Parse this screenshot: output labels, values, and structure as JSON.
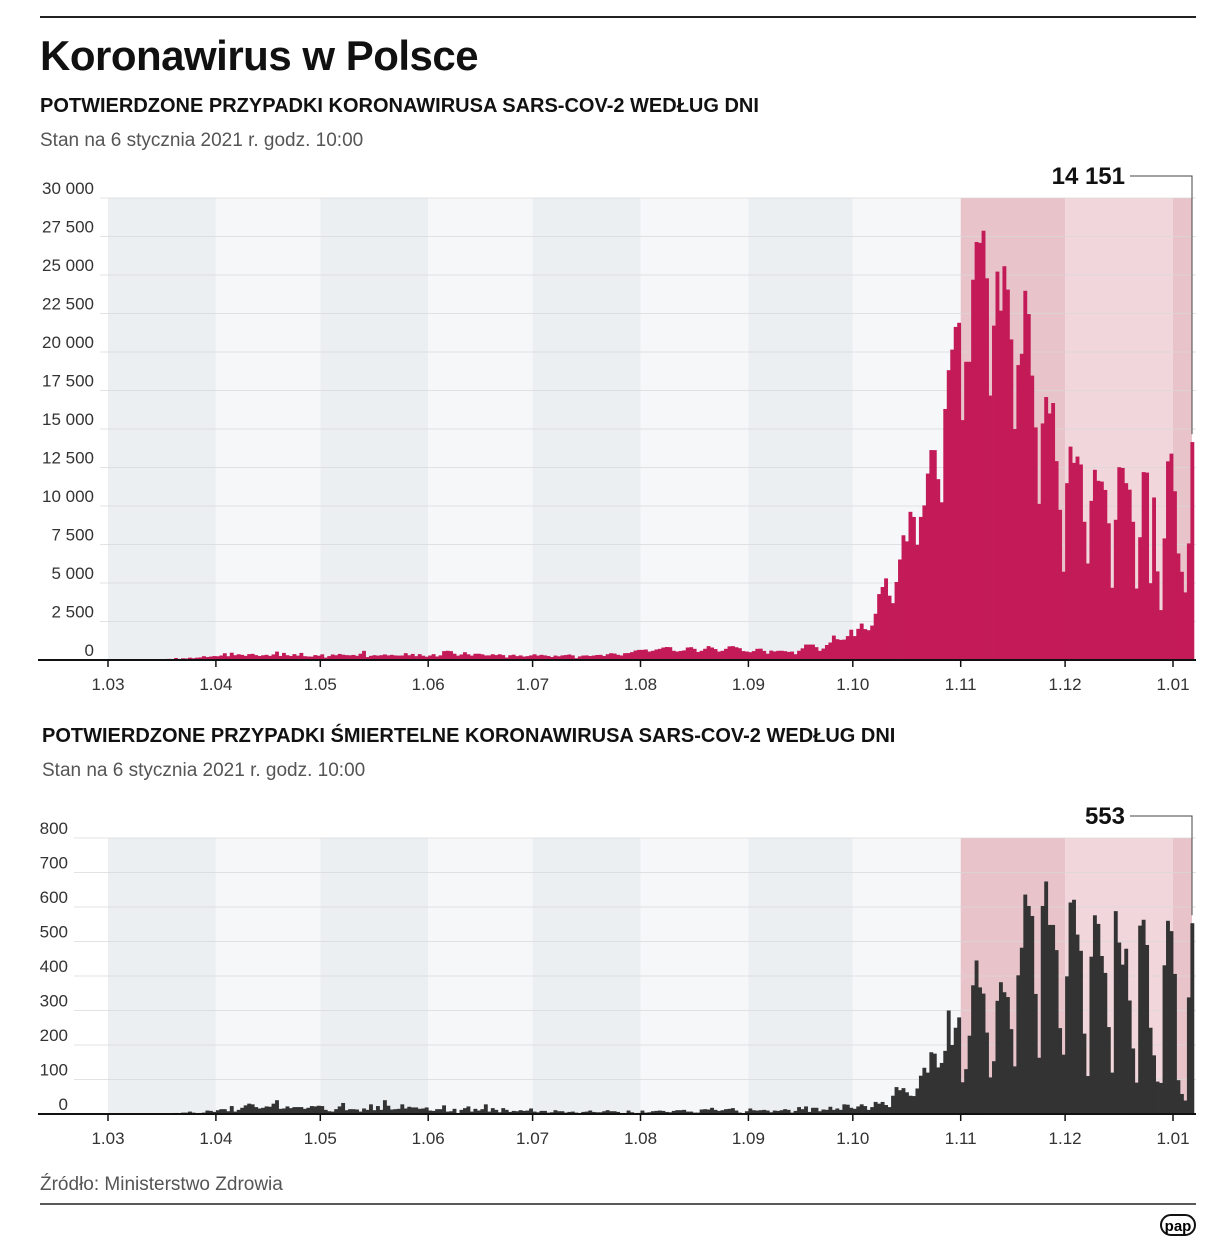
{
  "title": "Koronawirus w Polsce",
  "source": "Źródło: Ministerstwo Zdrowia",
  "logo": "pap",
  "colors": {
    "cases": "#c31b57",
    "deaths": "#333333",
    "band_a": "#eceff2",
    "band_b": "#f6f7f9",
    "highlight_dark": "#e8c3ca",
    "highlight_light": "#f1d6db"
  },
  "chart_data": [
    {
      "type": "bar",
      "title": "POTWIERDZONE PRZYPADKI KORONAWIRUSA SARS-COV-2 WEDŁUG DNI",
      "subtitle": "Stan na 6 stycznia 2021 r. godz. 10:00",
      "x_start": "2020-03-04",
      "x_end": "2021-01-06",
      "xtick_labels": [
        "1.03",
        "1.04",
        "1.05",
        "1.06",
        "1.07",
        "1.08",
        "1.09",
        "1.10",
        "1.11",
        "1.12",
        "1.01"
      ],
      "ytick_labels": [
        "0",
        "2 500",
        "5 000",
        "7 500",
        "10 000",
        "12 500",
        "15 000",
        "17 500",
        "20 000",
        "22 500",
        "25 000",
        "27 500",
        "30 000"
      ],
      "ylim": [
        0,
        30000
      ],
      "grid": true,
      "highlight_range": [
        "2020-11-01",
        "2021-01-06"
      ],
      "annotation": "14 151",
      "values": [
        1,
        0,
        4,
        1,
        5,
        6,
        6,
        9,
        17,
        19,
        32,
        36,
        51,
        52,
        73,
        38,
        130,
        70,
        111,
        98,
        152,
        115,
        150,
        170,
        249,
        193,
        224,
        256,
        243,
        292,
        437,
        244,
        475,
        311,
        372,
        334,
        268,
        380,
        401,
        318,
        260,
        306,
        336,
        268,
        363,
        545,
        263,
        461,
        313,
        263,
        381,
        285,
        460,
        249,
        230,
        221,
        319,
        278,
        368,
        156,
        254,
        357,
        307,
        394,
        344,
        317,
        304,
        330,
        270,
        409,
        595,
        193,
        270,
        314,
        285,
        313,
        361,
        298,
        335,
        296,
        286,
        292,
        443,
        308,
        395,
        249,
        380,
        278,
        215,
        292,
        379,
        230,
        303,
        576,
        599,
        575,
        407,
        282,
        359,
        505,
        370,
        285,
        406,
        407,
        370,
        297,
        300,
        374,
        318,
        374,
        318,
        162,
        309,
        344,
        252,
        298,
        225,
        253,
        299,
        371,
        286,
        336,
        299,
        262,
        194,
        288,
        239,
        299,
        322,
        358,
        299,
        116,
        235,
        290,
        299,
        258,
        290,
        325,
        335,
        258,
        375,
        442,
        418,
        337,
        295,
        443,
        449,
        512,
        615,
        657,
        658,
        680,
        548,
        599,
        680,
        726,
        809,
        843,
        833,
        599,
        548,
        587,
        624,
        811,
        832,
        726,
        523,
        600,
        730,
        903,
        811,
        711,
        548,
        597,
        726,
        887,
        900,
        830,
        767,
        580,
        550,
        507,
        579,
        726,
        737,
        591,
        410,
        610,
        554,
        597,
        601,
        574,
        529,
        548,
        377,
        600,
        757,
        1002,
        1002,
        1001,
        834,
        596,
        744,
        975,
        1136,
        1587,
        1350,
        1306,
        1326,
        1552,
        1967,
        1552,
        2023,
        2367,
        2006,
        1934,
        2236,
        3003,
        4280,
        4739,
        5300,
        4178,
        3690,
        5068,
        6526,
        8099,
        7705,
        9622,
        9291,
        7482,
        9291,
        10040,
        12107,
        13632,
        13628,
        11742,
        10241,
        16300,
        18820,
        20156,
        21629,
        21897,
        15578,
        19364,
        19364,
        24692,
        27143,
        27086,
        27875,
        24785,
        17171,
        21713,
        25221,
        22683,
        25571,
        24051,
        20816,
        15002,
        19152,
        19883,
        23975,
        22464,
        18467,
        15104,
        10139,
        15362,
        17076,
        16008,
        16687,
        12914,
        9751,
        5733,
        11483,
        13855,
        12800,
        13210,
        12697,
        8975,
        6267,
        10335,
        12352,
        11634,
        11585,
        11042,
        8878,
        4691,
        9105,
        12520,
        12472,
        11483,
        11060,
        8974,
        4641,
        7972,
        12203,
        12169,
        4988,
        10553,
        5754,
        3240,
        7895,
        12900,
        13400,
        10960,
        6920,
        5730,
        4390,
        7570,
        14151
      ]
    },
    {
      "type": "bar",
      "title": "POTWIERDZONE PRZYPADKI ŚMIERTELNE KORONAWIRUSA SARS-COV-2 WEDŁUG DNI",
      "subtitle": "Stan na 6 stycznia 2021 r. godz. 10:00",
      "x_start": "2020-03-04",
      "x_end": "2021-01-06",
      "xtick_labels": [
        "1.03",
        "1.04",
        "1.05",
        "1.06",
        "1.07",
        "1.08",
        "1.09",
        "1.10",
        "1.11",
        "1.12",
        "1.01"
      ],
      "ytick_labels": [
        "0",
        "100",
        "200",
        "300",
        "400",
        "500",
        "600",
        "700",
        "800"
      ],
      "ylim": [
        0,
        800
      ],
      "grid": true,
      "highlight_range": [
        "2020-11-01",
        "2021-01-06"
      ],
      "annotation": "553",
      "values": [
        0,
        0,
        0,
        0,
        0,
        0,
        0,
        0,
        1,
        1,
        1,
        1,
        0,
        2,
        2,
        2,
        3,
        1,
        4,
        4,
        7,
        4,
        2,
        3,
        4,
        10,
        9,
        6,
        11,
        14,
        14,
        8,
        23,
        7,
        12,
        18,
        25,
        30,
        28,
        20,
        16,
        18,
        22,
        21,
        30,
        40,
        15,
        16,
        22,
        17,
        20,
        20,
        20,
        15,
        18,
        23,
        22,
        24,
        23,
        12,
        8,
        7,
        14,
        22,
        32,
        11,
        14,
        14,
        13,
        7,
        16,
        12,
        28,
        11,
        23,
        12,
        40,
        24,
        13,
        14,
        15,
        28,
        16,
        21,
        19,
        19,
        15,
        16,
        19,
        10,
        9,
        14,
        14,
        25,
        7,
        8,
        15,
        3,
        12,
        17,
        22,
        7,
        15,
        10,
        14,
        28,
        7,
        17,
        12,
        5,
        17,
        12,
        6,
        9,
        8,
        11,
        9,
        10,
        16,
        7,
        5,
        9,
        9,
        4,
        5,
        11,
        8,
        8,
        4,
        6,
        7,
        4,
        3,
        6,
        7,
        10,
        6,
        5,
        5,
        8,
        11,
        8,
        8,
        6,
        3,
        3,
        10,
        5,
        3,
        3,
        10,
        4,
        5,
        8,
        9,
        10,
        9,
        6,
        5,
        9,
        11,
        11,
        12,
        7,
        7,
        4,
        4,
        13,
        14,
        13,
        18,
        12,
        9,
        11,
        14,
        15,
        17,
        10,
        4,
        2,
        8,
        16,
        11,
        10,
        11,
        12,
        10,
        5,
        10,
        9,
        11,
        14,
        12,
        4,
        9,
        20,
        14,
        22,
        6,
        18,
        18,
        8,
        13,
        12,
        21,
        12,
        16,
        12,
        28,
        27,
        18,
        15,
        22,
        28,
        23,
        12,
        20,
        35,
        30,
        35,
        26,
        20,
        53,
        78,
        69,
        75,
        63,
        53,
        52,
        74,
        111,
        134,
        120,
        179,
        175,
        135,
        148,
        183,
        300,
        200,
        250,
        280,
        92,
        130,
        227,
        373,
        445,
        367,
        349,
        236,
        106,
        153,
        328,
        382,
        353,
        339,
        246,
        138,
        402,
        482,
        636,
        603,
        574,
        348,
        163,
        603,
        674,
        548,
        548,
        475,
        249,
        172,
        399,
        613,
        621,
        520,
        473,
        233,
        110,
        456,
        576,
        551,
        458,
        409,
        252,
        120,
        588,
        497,
        433,
        479,
        329,
        190,
        91,
        546,
        563,
        490,
        250,
        170,
        94,
        90,
        431,
        560,
        530,
        406,
        98,
        58,
        39,
        338,
        553
      ]
    }
  ]
}
